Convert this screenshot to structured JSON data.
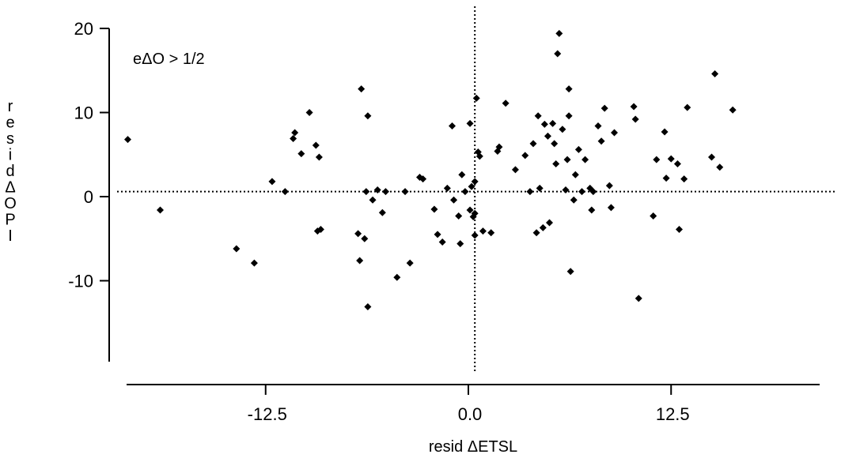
{
  "chart_data": {
    "type": "scatter",
    "title": "",
    "annotation": "eΔO > 1/2",
    "xlabel": "resid  ΔETSL",
    "ylabel": "residΔOPI",
    "xlim": [
      -21.5,
      22
    ],
    "ylim": [
      -19.5,
      22
    ],
    "xticks": [
      -12.5,
      0.0,
      12.5
    ],
    "xtick_labels": [
      "-12.5",
      "0.0",
      "12.5"
    ],
    "yticks": [
      -10,
      0,
      10,
      20
    ],
    "ytick_labels": [
      "-10",
      "0",
      "10",
      "20"
    ],
    "grid": false,
    "reference_lines": {
      "x": 0.4,
      "y": 0.6
    },
    "series": [
      {
        "marker": "diamond",
        "color": "#000000",
        "points": [
          [
            -21.0,
            6.8
          ],
          [
            -19.0,
            -1.6
          ],
          [
            -14.3,
            -6.2
          ],
          [
            -13.2,
            -7.9
          ],
          [
            -12.1,
            1.8
          ],
          [
            -11.3,
            0.6
          ],
          [
            -10.8,
            6.9
          ],
          [
            -10.7,
            7.6
          ],
          [
            -10.3,
            5.1
          ],
          [
            -9.8,
            10.0
          ],
          [
            -9.4,
            6.1
          ],
          [
            -9.2,
            4.7
          ],
          [
            -9.3,
            -4.1
          ],
          [
            -9.1,
            -3.9
          ],
          [
            -6.6,
            12.8
          ],
          [
            -6.2,
            9.6
          ],
          [
            -6.8,
            -4.4
          ],
          [
            -6.4,
            -5.0
          ],
          [
            -6.7,
            -7.6
          ],
          [
            -6.2,
            -13.1
          ],
          [
            -6.3,
            0.6
          ],
          [
            -5.9,
            -0.4
          ],
          [
            -5.6,
            0.8
          ],
          [
            -5.3,
            -1.9
          ],
          [
            -5.1,
            0.6
          ],
          [
            -4.4,
            -9.6
          ],
          [
            -3.9,
            0.6
          ],
          [
            -3.6,
            -7.9
          ],
          [
            -3.0,
            2.3
          ],
          [
            -2.8,
            2.1
          ],
          [
            -2.1,
            -1.5
          ],
          [
            -1.9,
            -4.5
          ],
          [
            -1.6,
            -5.4
          ],
          [
            -1.3,
            1.0
          ],
          [
            -1.0,
            8.4
          ],
          [
            -0.9,
            -0.4
          ],
          [
            -0.6,
            -2.3
          ],
          [
            -0.4,
            2.6
          ],
          [
            -0.5,
            -5.6
          ],
          [
            -0.2,
            0.6
          ],
          [
            0.1,
            -1.6
          ],
          [
            0.1,
            8.7
          ],
          [
            0.2,
            1.2
          ],
          [
            0.3,
            -2.4
          ],
          [
            0.4,
            -2.0
          ],
          [
            0.4,
            -4.6
          ],
          [
            0.4,
            1.8
          ],
          [
            0.5,
            11.7
          ],
          [
            0.6,
            5.3
          ],
          [
            0.7,
            4.8
          ],
          [
            0.9,
            -4.1
          ],
          [
            1.4,
            -4.3
          ],
          [
            1.8,
            5.4
          ],
          [
            1.9,
            5.9
          ],
          [
            2.3,
            11.1
          ],
          [
            2.9,
            3.2
          ],
          [
            3.5,
            4.9
          ],
          [
            3.8,
            0.6
          ],
          [
            4.0,
            6.3
          ],
          [
            4.3,
            9.6
          ],
          [
            4.4,
            1.0
          ],
          [
            4.2,
            -4.3
          ],
          [
            4.6,
            -3.7
          ],
          [
            4.7,
            8.6
          ],
          [
            4.9,
            7.2
          ],
          [
            5.0,
            -3.1
          ],
          [
            5.2,
            8.7
          ],
          [
            5.3,
            6.3
          ],
          [
            5.4,
            3.9
          ],
          [
            5.5,
            17.0
          ],
          [
            5.6,
            19.4
          ],
          [
            5.8,
            8.0
          ],
          [
            6.0,
            0.8
          ],
          [
            6.1,
            4.4
          ],
          [
            6.2,
            12.8
          ],
          [
            6.2,
            9.6
          ],
          [
            6.3,
            -8.9
          ],
          [
            6.5,
            -0.4
          ],
          [
            6.6,
            2.6
          ],
          [
            6.8,
            5.6
          ],
          [
            7.0,
            0.6
          ],
          [
            7.2,
            4.4
          ],
          [
            7.5,
            1.0
          ],
          [
            7.6,
            -1.6
          ],
          [
            7.7,
            0.6
          ],
          [
            8.0,
            8.4
          ],
          [
            8.2,
            6.6
          ],
          [
            8.4,
            10.5
          ],
          [
            8.7,
            1.3
          ],
          [
            8.8,
            -1.3
          ],
          [
            9.0,
            7.6
          ],
          [
            10.2,
            10.7
          ],
          [
            10.3,
            9.2
          ],
          [
            10.5,
            -12.1
          ],
          [
            11.4,
            -2.3
          ],
          [
            11.6,
            4.4
          ],
          [
            12.1,
            7.7
          ],
          [
            12.2,
            2.2
          ],
          [
            12.5,
            4.5
          ],
          [
            12.9,
            3.9
          ],
          [
            13.0,
            -3.9
          ],
          [
            13.3,
            2.1
          ],
          [
            13.5,
            10.6
          ],
          [
            15.0,
            4.7
          ],
          [
            15.2,
            14.6
          ],
          [
            15.5,
            3.5
          ],
          [
            16.3,
            10.3
          ]
        ]
      }
    ]
  }
}
